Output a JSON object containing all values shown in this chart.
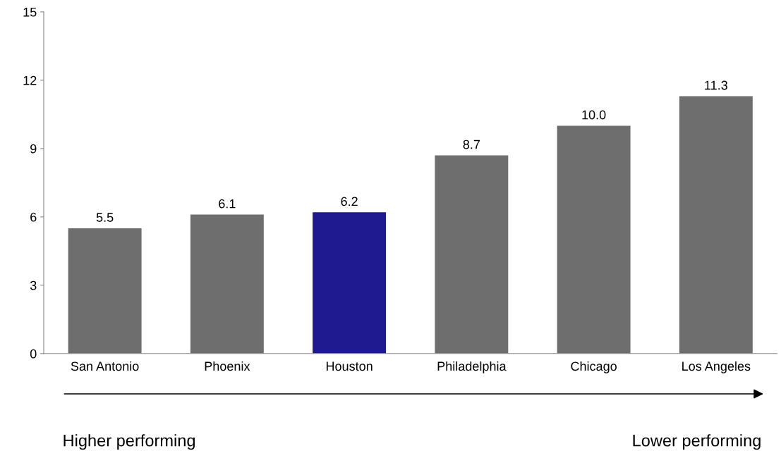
{
  "chart_data": {
    "type": "bar",
    "categories": [
      "San Antonio",
      "Phoenix",
      "Houston",
      "Philadelphia",
      "Chicago",
      "Los Angeles"
    ],
    "values": [
      5.5,
      6.1,
      6.2,
      8.7,
      10.0,
      11.3
    ],
    "value_labels": [
      "5.5",
      "6.1",
      "6.2",
      "8.7",
      "10.0",
      "11.3"
    ],
    "colors": [
      "#6e6e6e",
      "#6e6e6e",
      "#1f1a8f",
      "#6e6e6e",
      "#6e6e6e",
      "#6e6e6e"
    ],
    "ylim": [
      0,
      15
    ],
    "yticks": [
      0,
      3,
      6,
      9,
      12,
      15
    ],
    "grid": false,
    "legend": false,
    "annotations": [
      "Higher performing",
      "Lower performing"
    ]
  }
}
